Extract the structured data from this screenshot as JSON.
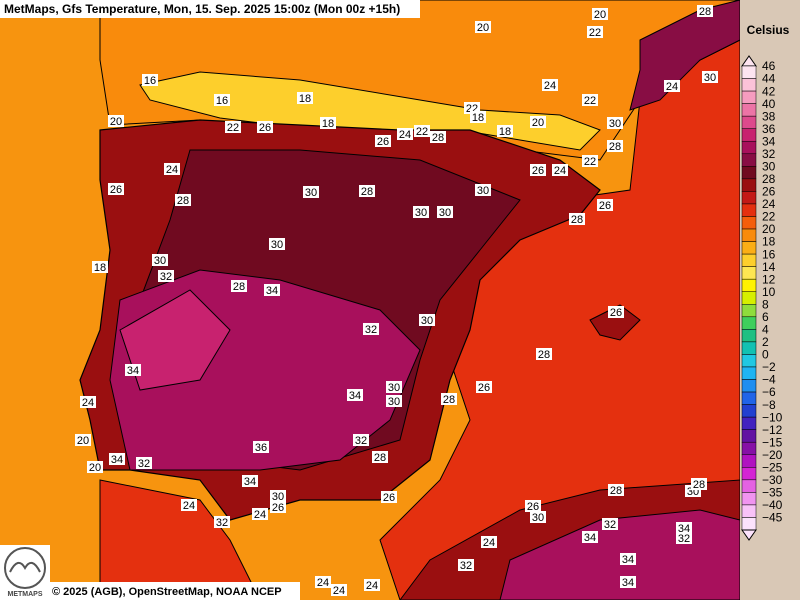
{
  "header": {
    "title": "MetMaps, Gfs Temperature, Mon, 15. Sep. 2025 15:00z (Mon 00z +15h)"
  },
  "footer": {
    "copyright": "© 2025 (AGB), OpenStreetMap, NOAA NCEP",
    "logo": "METMAPS"
  },
  "legend": {
    "title": "Celsius",
    "entries": [
      {
        "label": "46",
        "color": "#fde4f0"
      },
      {
        "label": "44",
        "color": "#fbc2d8"
      },
      {
        "label": "42",
        "color": "#f59cbf"
      },
      {
        "label": "40",
        "color": "#ec74a6"
      },
      {
        "label": "38",
        "color": "#dd4a8c"
      },
      {
        "label": "36",
        "color": "#c8226f"
      },
      {
        "label": "34",
        "color": "#a8105c"
      },
      {
        "label": "32",
        "color": "#880d44"
      },
      {
        "label": "30",
        "color": "#700a20"
      },
      {
        "label": "28",
        "color": "#9a0f10"
      },
      {
        "label": "26",
        "color": "#c31a16"
      },
      {
        "label": "24",
        "color": "#e4300f"
      },
      {
        "label": "22",
        "color": "#f45e0b"
      },
      {
        "label": "20",
        "color": "#f98b0c"
      },
      {
        "label": "18",
        "color": "#fbae16"
      },
      {
        "label": "16",
        "color": "#fdcf2c"
      },
      {
        "label": "14",
        "color": "#fde652"
      },
      {
        "label": "12",
        "color": "#fff200"
      },
      {
        "label": "10",
        "color": "#d6ef00"
      },
      {
        "label": "8",
        "color": "#8fdd3c"
      },
      {
        "label": "6",
        "color": "#3fcf5c"
      },
      {
        "label": "4",
        "color": "#1fc082"
      },
      {
        "label": "2",
        "color": "#12c1b2"
      },
      {
        "label": "0",
        "color": "#20c8e2"
      },
      {
        "label": "−2",
        "color": "#1fb4f2"
      },
      {
        "label": "−4",
        "color": "#1f8ef0"
      },
      {
        "label": "−6",
        "color": "#2064e8"
      },
      {
        "label": "−8",
        "color": "#2240d0"
      },
      {
        "label": "−10",
        "color": "#4222bf"
      },
      {
        "label": "−12",
        "color": "#6212a2"
      },
      {
        "label": "−15",
        "color": "#8610a6"
      },
      {
        "label": "−20",
        "color": "#b012c0"
      },
      {
        "label": "−25",
        "color": "#d424d4"
      },
      {
        "label": "−30",
        "color": "#e462e2"
      },
      {
        "label": "−35",
        "color": "#f094f0"
      },
      {
        "label": "−40",
        "color": "#f8c2f8"
      },
      {
        "label": "−45",
        "color": "#fce2fc"
      }
    ]
  },
  "map": {
    "contour_labels": [
      "20",
      "20",
      "28",
      "22",
      "24",
      "22",
      "30",
      "24",
      "16",
      "16",
      "18",
      "20",
      "22",
      "26",
      "18",
      "26",
      "24",
      "22",
      "28",
      "22",
      "18",
      "18",
      "20",
      "30",
      "28",
      "22",
      "26",
      "24",
      "24",
      "26",
      "28",
      "30",
      "28",
      "30",
      "30",
      "30",
      "28",
      "26",
      "30",
      "18",
      "30",
      "32",
      "28",
      "34",
      "32",
      "30",
      "26",
      "28",
      "34",
      "24",
      "34",
      "30",
      "30",
      "28",
      "26",
      "20",
      "36",
      "32",
      "28",
      "34",
      "20",
      "32",
      "34",
      "26",
      "30",
      "26",
      "24",
      "24",
      "32",
      "28",
      "26",
      "30",
      "30",
      "28",
      "32",
      "34",
      "32",
      "34",
      "24",
      "32",
      "34",
      "34",
      "24",
      "24",
      "24"
    ]
  }
}
